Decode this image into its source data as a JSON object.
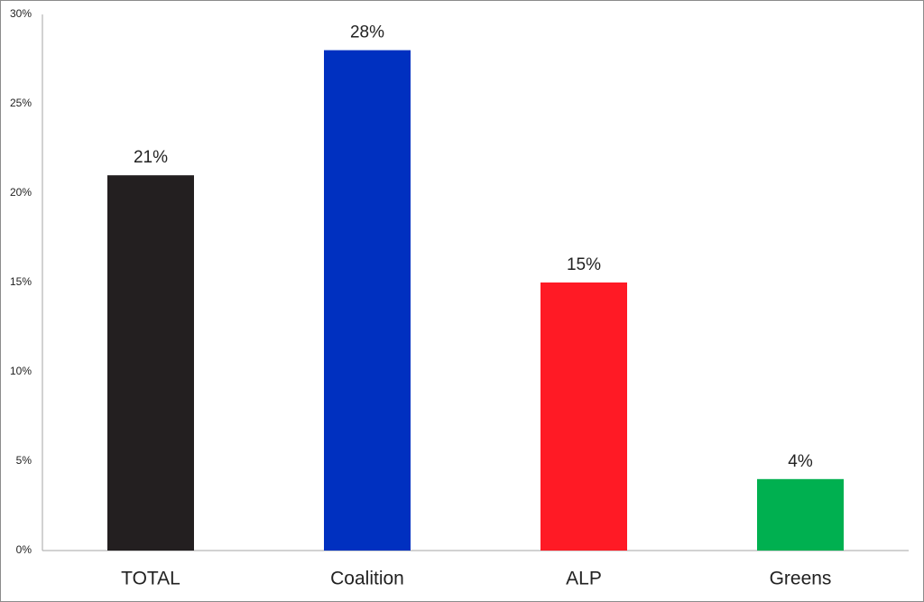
{
  "chart_data": {
    "type": "bar",
    "categories": [
      "TOTAL",
      "Coalition",
      "ALP",
      "Greens"
    ],
    "values": [
      21,
      28,
      15,
      4
    ],
    "value_labels": [
      "21%",
      "28%",
      "15%",
      "4%"
    ],
    "colors": [
      "#231f20",
      "#0030c0",
      "#ff1a25",
      "#00b050"
    ],
    "ylim": [
      0,
      30
    ],
    "yticks": [
      {
        "value": 0,
        "label": "0%"
      },
      {
        "value": 5,
        "label": "5%"
      },
      {
        "value": 10,
        "label": "10%"
      },
      {
        "value": 15,
        "label": "15%"
      },
      {
        "value": 20,
        "label": "20%"
      },
      {
        "value": 25,
        "label": "25%"
      },
      {
        "value": 30,
        "label": "30%"
      }
    ],
    "grid": false
  }
}
